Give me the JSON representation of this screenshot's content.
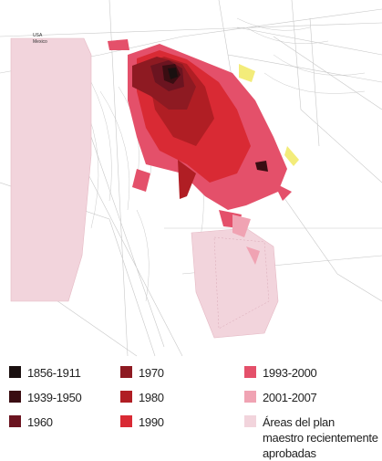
{
  "map": {
    "labels": [
      "USA",
      "Mexico"
    ]
  },
  "legend": [
    {
      "label": "1856-1911",
      "color": "#1a1010"
    },
    {
      "label": "1939-1950",
      "color": "#3a0d12"
    },
    {
      "label": "1960",
      "color": "#6b1420"
    },
    {
      "label": "1970",
      "color": "#8e1a22"
    },
    {
      "label": "1980",
      "color": "#b01e24"
    },
    {
      "label": "1990",
      "color": "#d92a34"
    },
    {
      "label": "1993-2000",
      "color": "#e4506a"
    },
    {
      "label": "2001-2007",
      "color": "#f0a3b3"
    },
    {
      "label": "Áreas del plan maestro recientemente aprobadas",
      "color": "#f2d4dc"
    }
  ]
}
